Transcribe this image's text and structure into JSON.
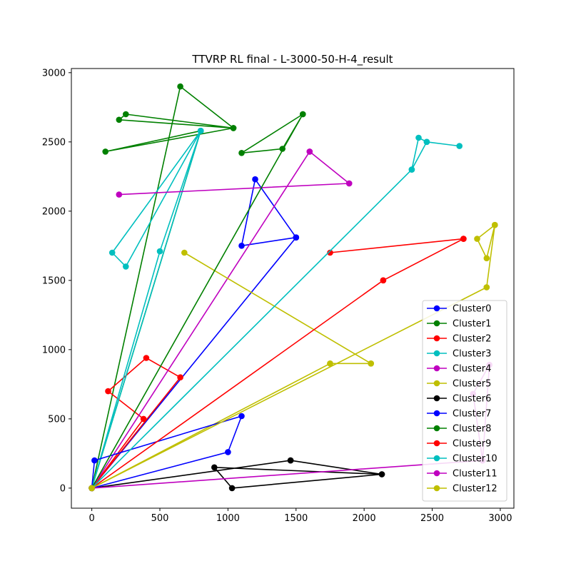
{
  "chart_data": {
    "type": "line",
    "title": "TTVRP RL final - L-3000-50-H-4_result",
    "xlabel": "",
    "ylabel": "",
    "xlim": [
      -150,
      3100
    ],
    "ylim": [
      -145,
      3030
    ],
    "xticks": [
      0,
      500,
      1000,
      1500,
      2000,
      2500,
      3000
    ],
    "yticks": [
      0,
      500,
      1000,
      1500,
      2000,
      2500,
      3000
    ],
    "grid": false,
    "legend_position": "lower-right",
    "series": [
      {
        "name": "Cluster0",
        "color": "#0000ff",
        "points": [
          [
            0,
            0
          ],
          [
            1500,
            1810
          ],
          [
            1100,
            1750
          ],
          [
            1200,
            2230
          ],
          [
            1500,
            1810
          ],
          [
            0,
            0
          ]
        ]
      },
      {
        "name": "Cluster1",
        "color": "#008000",
        "points": [
          [
            0,
            0
          ],
          [
            650,
            2900
          ],
          [
            1040,
            2600
          ],
          [
            200,
            2660
          ],
          [
            250,
            2700
          ],
          [
            1040,
            2600
          ],
          [
            100,
            2430
          ],
          [
            800,
            2580
          ],
          [
            0,
            0
          ]
        ]
      },
      {
        "name": "Cluster2",
        "color": "#ff0000",
        "points": [
          [
            0,
            0
          ],
          [
            650,
            800
          ],
          [
            400,
            940
          ],
          [
            120,
            700
          ],
          [
            380,
            500
          ],
          [
            0,
            0
          ]
        ]
      },
      {
        "name": "Cluster3",
        "color": "#00bfbf",
        "points": [
          [
            0,
            0
          ],
          [
            800,
            2580
          ],
          [
            500,
            1710
          ],
          [
            0,
            0
          ],
          [
            800,
            2580
          ],
          [
            150,
            1700
          ],
          [
            250,
            1600
          ],
          [
            800,
            2580
          ],
          [
            0,
            0
          ]
        ]
      },
      {
        "name": "Cluster4",
        "color": "#bf00bf",
        "points": [
          [
            0,
            0
          ],
          [
            1600,
            2430
          ],
          [
            1890,
            2200
          ],
          [
            200,
            2120
          ],
          [
            1890,
            2200
          ],
          [
            1600,
            2430
          ],
          [
            0,
            0
          ]
        ]
      },
      {
        "name": "Cluster5",
        "color": "#bfbf00",
        "points": [
          [
            0,
            0
          ],
          [
            1750,
            900
          ],
          [
            2050,
            900
          ],
          [
            680,
            1700
          ],
          [
            2050,
            900
          ],
          [
            1750,
            900
          ],
          [
            0,
            0
          ]
        ]
      },
      {
        "name": "Cluster6",
        "color": "#000000",
        "points": [
          [
            0,
            0
          ],
          [
            1460,
            200
          ],
          [
            2130,
            100
          ],
          [
            900,
            150
          ],
          [
            1030,
            0
          ],
          [
            2130,
            100
          ],
          [
            1460,
            200
          ],
          [
            0,
            0
          ]
        ]
      },
      {
        "name": "Cluster7",
        "color": "#0000ff",
        "points": [
          [
            0,
            0
          ],
          [
            1000,
            260
          ],
          [
            1100,
            520
          ],
          [
            20,
            200
          ],
          [
            0,
            0
          ]
        ]
      },
      {
        "name": "Cluster8",
        "color": "#008000",
        "points": [
          [
            0,
            0
          ],
          [
            1550,
            2700
          ],
          [
            1400,
            2450
          ],
          [
            1100,
            2420
          ],
          [
            1550,
            2700
          ],
          [
            0,
            0
          ]
        ]
      },
      {
        "name": "Cluster9",
        "color": "#ff0000",
        "points": [
          [
            0,
            0
          ],
          [
            2140,
            1500
          ],
          [
            2730,
            1800
          ],
          [
            1750,
            1700
          ],
          [
            2730,
            1800
          ],
          [
            2140,
            1500
          ],
          [
            0,
            0
          ]
        ]
      },
      {
        "name": "Cluster10",
        "color": "#00bfbf",
        "points": [
          [
            0,
            0
          ],
          [
            2350,
            2300
          ],
          [
            2400,
            2530
          ],
          [
            2460,
            2500
          ],
          [
            2700,
            2470
          ],
          [
            2460,
            2500
          ],
          [
            2350,
            2300
          ],
          [
            0,
            0
          ]
        ]
      },
      {
        "name": "Cluster11",
        "color": "#bf00bf",
        "points": [
          [
            0,
            0
          ],
          [
            2870,
            200
          ],
          [
            2800,
            680
          ],
          [
            2920,
            890
          ],
          [
            2870,
            200
          ],
          [
            0,
            0
          ]
        ]
      },
      {
        "name": "Cluster12",
        "color": "#bfbf00",
        "points": [
          [
            0,
            0
          ],
          [
            2900,
            1450
          ],
          [
            2960,
            1900
          ],
          [
            2830,
            1800
          ],
          [
            2900,
            1660
          ],
          [
            2960,
            1900
          ],
          [
            2900,
            1450
          ],
          [
            0,
            0
          ]
        ]
      }
    ]
  }
}
